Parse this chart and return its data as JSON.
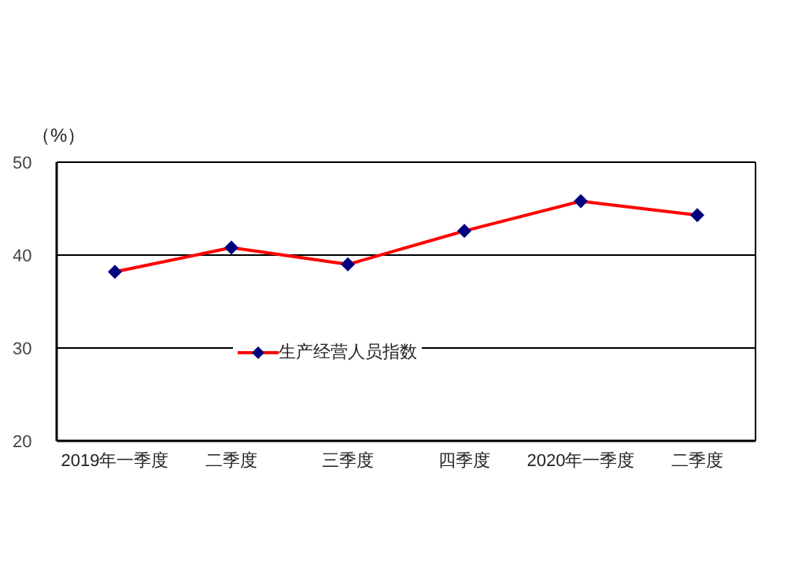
{
  "chart_data": {
    "type": "line",
    "ylabel": "（%）",
    "categories": [
      "2019年一季度",
      "二季度",
      "三季度",
      "四季度",
      "2020年一季度",
      "二季度"
    ],
    "series": [
      {
        "name": "生产经营人员指数",
        "color": "#ff0000",
        "values": [
          38.2,
          40.8,
          39.0,
          42.6,
          45.8,
          44.3
        ]
      }
    ],
    "ylim": [
      20,
      50
    ],
    "yticks": [
      20,
      30,
      40,
      50
    ],
    "grid": "y",
    "legend": "bottom",
    "marker": "diamond"
  }
}
